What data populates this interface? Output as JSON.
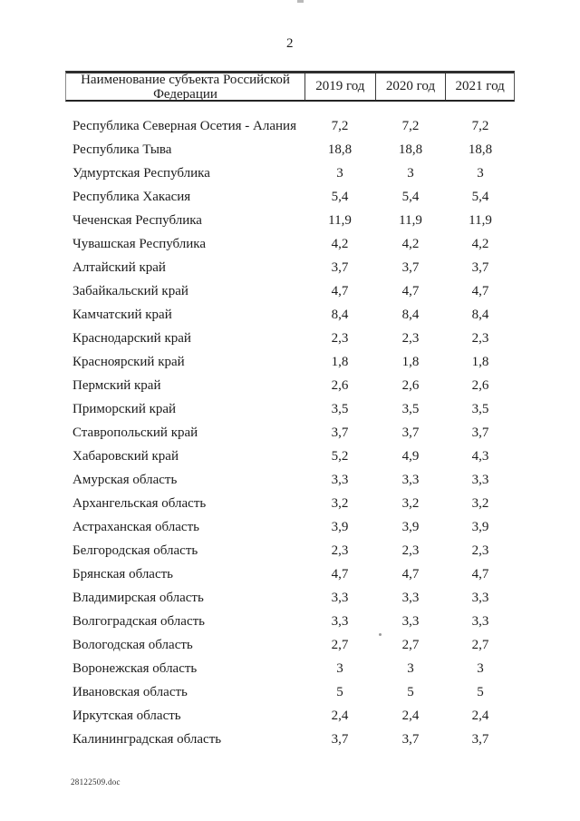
{
  "page": {
    "number": "2",
    "footer_filename": "28122509.doc"
  },
  "table": {
    "columns": {
      "name": "Наименование субъекта Российской Федерации",
      "y2019": "2019 год",
      "y2020": "2020 год",
      "y2021": "2021 год"
    },
    "rows": [
      {
        "name": "Республика Северная Осетия - Алания",
        "v2019": "7,2",
        "v2020": "7,2",
        "v2021": "7,2"
      },
      {
        "name": "Республика Тыва",
        "v2019": "18,8",
        "v2020": "18,8",
        "v2021": "18,8"
      },
      {
        "name": "Удмуртская Республика",
        "v2019": "3",
        "v2020": "3",
        "v2021": "3"
      },
      {
        "name": "Республика Хакасия",
        "v2019": "5,4",
        "v2020": "5,4",
        "v2021": "5,4"
      },
      {
        "name": "Чеченская Республика",
        "v2019": "11,9",
        "v2020": "11,9",
        "v2021": "11,9"
      },
      {
        "name": "Чувашская Республика",
        "v2019": "4,2",
        "v2020": "4,2",
        "v2021": "4,2"
      },
      {
        "name": "Алтайский край",
        "v2019": "3,7",
        "v2020": "3,7",
        "v2021": "3,7"
      },
      {
        "name": "Забайкальский край",
        "v2019": "4,7",
        "v2020": "4,7",
        "v2021": "4,7"
      },
      {
        "name": "Камчатский край",
        "v2019": "8,4",
        "v2020": "8,4",
        "v2021": "8,4"
      },
      {
        "name": "Краснодарский край",
        "v2019": "2,3",
        "v2020": "2,3",
        "v2021": "2,3"
      },
      {
        "name": "Красноярский край",
        "v2019": "1,8",
        "v2020": "1,8",
        "v2021": "1,8"
      },
      {
        "name": "Пермский край",
        "v2019": "2,6",
        "v2020": "2,6",
        "v2021": "2,6"
      },
      {
        "name": "Приморский край",
        "v2019": "3,5",
        "v2020": "3,5",
        "v2021": "3,5"
      },
      {
        "name": "Ставропольский край",
        "v2019": "3,7",
        "v2020": "3,7",
        "v2021": "3,7"
      },
      {
        "name": "Хабаровский край",
        "v2019": "5,2",
        "v2020": "4,9",
        "v2021": "4,3"
      },
      {
        "name": "Амурская область",
        "v2019": "3,3",
        "v2020": "3,3",
        "v2021": "3,3"
      },
      {
        "name": "Архангельская область",
        "v2019": "3,2",
        "v2020": "3,2",
        "v2021": "3,2"
      },
      {
        "name": "Астраханская область",
        "v2019": "3,9",
        "v2020": "3,9",
        "v2021": "3,9"
      },
      {
        "name": "Белгородская область",
        "v2019": "2,3",
        "v2020": "2,3",
        "v2021": "2,3"
      },
      {
        "name": "Брянская область",
        "v2019": "4,7",
        "v2020": "4,7",
        "v2021": "4,7"
      },
      {
        "name": "Владимирская область",
        "v2019": "3,3",
        "v2020": "3,3",
        "v2021": "3,3"
      },
      {
        "name": "Волгоградская область",
        "v2019": "3,3",
        "v2020": "3,3",
        "v2021": "3,3"
      },
      {
        "name": "Вологодская область",
        "v2019": "2,7",
        "v2020": "2,7",
        "v2021": "2,7"
      },
      {
        "name": "Воронежская область",
        "v2019": "3",
        "v2020": "3",
        "v2021": "3"
      },
      {
        "name": "Ивановская область",
        "v2019": "5",
        "v2020": "5",
        "v2021": "5"
      },
      {
        "name": "Иркутская область",
        "v2019": "2,4",
        "v2020": "2,4",
        "v2021": "2,4"
      },
      {
        "name": "Калининградская область",
        "v2019": "3,7",
        "v2020": "3,7",
        "v2021": "3,7"
      }
    ]
  }
}
